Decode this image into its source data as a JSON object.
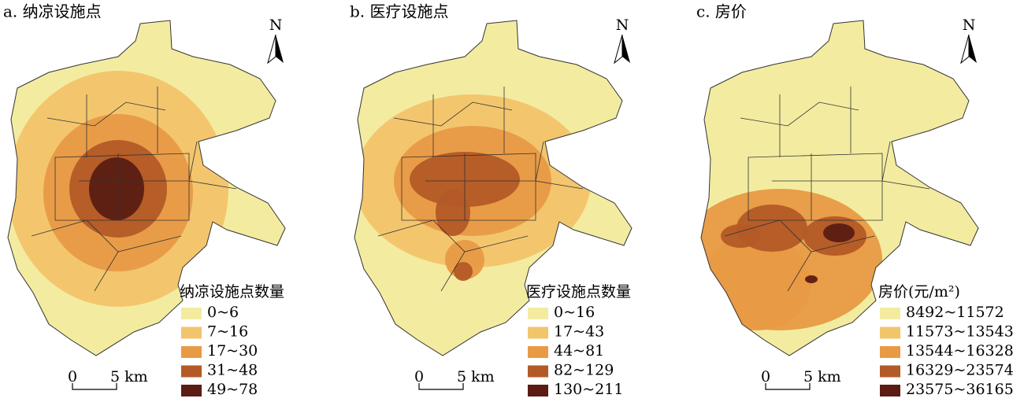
{
  "panels": [
    {
      "title": "a. 纳凉设施点",
      "north": "N",
      "scale": {
        "zero": "0",
        "distance": "5 km"
      },
      "legend": {
        "title": "纳凉设施点数量",
        "items": [
          {
            "label": "0~6",
            "color": "#f3eca0"
          },
          {
            "label": "7~16",
            "color": "#f2c46c"
          },
          {
            "label": "17~30",
            "color": "#e89a44"
          },
          {
            "label": "31~48",
            "color": "#b35a27"
          },
          {
            "label": "49~78",
            "color": "#5b1c13"
          }
        ]
      }
    },
    {
      "title": "b. 医疗设施点",
      "north": "N",
      "scale": {
        "zero": "0",
        "distance": "5 km"
      },
      "legend": {
        "title": "医疗设施点数量",
        "items": [
          {
            "label": "0~16",
            "color": "#f3eca0"
          },
          {
            "label": "17~43",
            "color": "#f2c46c"
          },
          {
            "label": "44~81",
            "color": "#e89a44"
          },
          {
            "label": "82~129",
            "color": "#b35a27"
          },
          {
            "label": "130~211",
            "color": "#5b1c13"
          }
        ]
      }
    },
    {
      "title": "c. 房价",
      "north": "N",
      "scale": {
        "zero": "0",
        "distance": "5 km"
      },
      "legend": {
        "title": "房价(元/m²)",
        "items": [
          {
            "label": "8492~11572",
            "color": "#f3eca0"
          },
          {
            "label": "11573~13543",
            "color": "#f2c46c"
          },
          {
            "label": "13544~16328",
            "color": "#e89a44"
          },
          {
            "label": "16329~23574",
            "color": "#b35a27"
          },
          {
            "label": "23575~36165",
            "color": "#5b1c13"
          }
        ]
      }
    }
  ]
}
